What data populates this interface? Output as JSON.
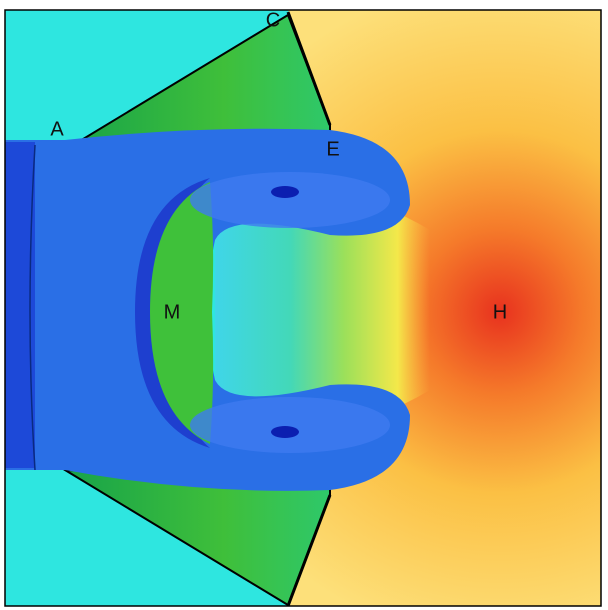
{
  "labels": [
    "A",
    "C",
    "E",
    "M",
    "H"
  ]
}
